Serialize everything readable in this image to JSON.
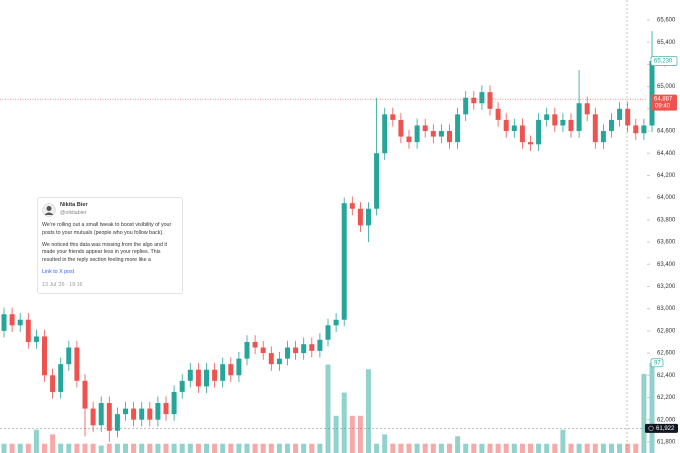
{
  "chart_data": {
    "type": "candlestick",
    "ylim": [
      61700,
      65780
    ],
    "yticks": [
      {
        "value": 65600,
        "label": "65,600"
      },
      {
        "value": 65400,
        "label": "65,400"
      },
      {
        "value": 65200,
        "label": "65,200"
      },
      {
        "value": 65000,
        "label": "65,000"
      },
      {
        "value": 64800,
        "label": "64,800"
      },
      {
        "value": 64600,
        "label": "64,600"
      },
      {
        "value": 64400,
        "label": "64,400"
      },
      {
        "value": 64200,
        "label": "64,200"
      },
      {
        "value": 64000,
        "label": "64,000"
      },
      {
        "value": 63800,
        "label": "63,800"
      },
      {
        "value": 63600,
        "label": "63,600"
      },
      {
        "value": 63400,
        "label": "63,400"
      },
      {
        "value": 63200,
        "label": "63,200"
      },
      {
        "value": 63000,
        "label": "63,000"
      },
      {
        "value": 62800,
        "label": "62,800"
      },
      {
        "value": 62600,
        "label": "62,600"
      },
      {
        "value": 62400,
        "label": "62,400"
      },
      {
        "value": 62200,
        "label": "62,200"
      },
      {
        "value": 62000,
        "label": "62,000"
      },
      {
        "value": 61800,
        "label": "61,800"
      }
    ],
    "grid": false,
    "up_color": "#26a69a",
    "down_color": "#ef5350",
    "open": [
      62800,
      62950,
      62850,
      62900,
      62700,
      62750,
      62400,
      62250,
      62500,
      62650,
      62350,
      62100,
      61950,
      62150,
      61900,
      62050,
      62100,
      62000,
      62100,
      62000,
      62150,
      62050,
      62250,
      62350,
      62450,
      62300,
      62450,
      62350,
      62500,
      62400,
      62550,
      62700,
      62650,
      62600,
      62500,
      62550,
      62650,
      62600,
      62680,
      62620,
      62720,
      62850,
      62900,
      63950,
      63900,
      63750,
      63900,
      64400,
      64750,
      64700,
      64550,
      64500,
      64650,
      64600,
      64550,
      64600,
      64500,
      64750,
      64900,
      64850,
      64950,
      64800,
      64700,
      64600,
      64650,
      64500,
      64480,
      64700,
      64750,
      64650,
      64700,
      64600,
      64850,
      64750,
      64500,
      64600,
      64700,
      64800,
      64650,
      64580,
      64650
    ],
    "high": [
      63010,
      63010,
      62960,
      62960,
      62810,
      62810,
      62460,
      62560,
      62710,
      62710,
      62410,
      62160,
      62210,
      62210,
      62110,
      62160,
      62160,
      62160,
      62160,
      62210,
      62210,
      62310,
      62410,
      62510,
      62510,
      62510,
      62510,
      62560,
      62560,
      62610,
      62760,
      62760,
      62710,
      62660,
      62610,
      62710,
      62710,
      62740,
      62740,
      62780,
      62910,
      62960,
      64000,
      64010,
      63960,
      63960,
      64900,
      64810,
      64810,
      64760,
      64610,
      64710,
      64710,
      64660,
      64660,
      64660,
      64810,
      64960,
      64960,
      65010,
      65010,
      64860,
      64760,
      64710,
      64710,
      64560,
      64760,
      64810,
      64810,
      64760,
      64760,
      65150,
      64910,
      64810,
      64660,
      64760,
      64860,
      64860,
      64710,
      64710,
      65500
    ],
    "low": [
      62740,
      62790,
      62790,
      62640,
      62640,
      62340,
      62190,
      62190,
      62440,
      62290,
      61850,
      61890,
      61890,
      61800,
      61840,
      61990,
      61940,
      61940,
      61940,
      61940,
      61990,
      61990,
      62190,
      62290,
      62240,
      62240,
      62290,
      62290,
      62340,
      62340,
      62490,
      62590,
      62540,
      62440,
      62440,
      62490,
      62540,
      62540,
      62560,
      62560,
      62660,
      62790,
      62840,
      63840,
      63690,
      63600,
      63840,
      64340,
      64640,
      64490,
      64440,
      64440,
      64540,
      64490,
      64490,
      64440,
      64440,
      64690,
      64790,
      64790,
      64740,
      64640,
      64540,
      64540,
      64440,
      64420,
      64420,
      64640,
      64590,
      64590,
      64540,
      64540,
      64690,
      64440,
      64440,
      64540,
      64640,
      64590,
      64520,
      64520,
      64590
    ],
    "close": [
      62950,
      62850,
      62900,
      62700,
      62750,
      62400,
      62250,
      62500,
      62650,
      62350,
      62100,
      61950,
      62150,
      61900,
      62050,
      62100,
      62000,
      62100,
      62000,
      62150,
      62050,
      62250,
      62350,
      62450,
      62300,
      62450,
      62350,
      62500,
      62400,
      62550,
      62700,
      62650,
      62600,
      62500,
      62550,
      62650,
      62600,
      62680,
      62620,
      62720,
      62850,
      62900,
      63950,
      63900,
      63750,
      63900,
      64400,
      64750,
      64700,
      64550,
      64500,
      64650,
      64600,
      64550,
      64600,
      64500,
      64750,
      64900,
      64850,
      64950,
      64800,
      64700,
      64600,
      64650,
      64500,
      64480,
      64700,
      64750,
      64650,
      64700,
      64600,
      64850,
      64750,
      64500,
      64600,
      64700,
      64800,
      64650,
      64580,
      64650,
      65230
    ],
    "volume": [
      10,
      10,
      10,
      10,
      25,
      10,
      20,
      10,
      10,
      10,
      10,
      10,
      8,
      10,
      10,
      10,
      10,
      10,
      10,
      10,
      10,
      10,
      10,
      10,
      10,
      10,
      10,
      10,
      10,
      10,
      10,
      10,
      10,
      10,
      10,
      10,
      10,
      10,
      10,
      10,
      95,
      40,
      65,
      40,
      40,
      90,
      10,
      20,
      10,
      10,
      10,
      10,
      10,
      10,
      10,
      10,
      18,
      10,
      10,
      10,
      10,
      10,
      10,
      10,
      10,
      10,
      10,
      10,
      10,
      25,
      10,
      10,
      10,
      10,
      10,
      10,
      10,
      10,
      10,
      85,
      97
    ],
    "volume_lim": [
      0,
      487
    ],
    "price_labels": [
      {
        "value": 65230,
        "label": "65,230"
      },
      {
        "value": 64887,
        "label": "64,887"
      }
    ],
    "countdown": "09:40",
    "crosshair": {
      "value": 61922,
      "label": "61,922"
    }
  },
  "tweet": {
    "name": "Nikita Bier",
    "handle": "@nikitabier",
    "paragraphs": [
      "We're rolling out a small tweak to boost visibility of your posts to your mutuals (people who you follow back).",
      "We noticed this data was missing from the algo and it made your friends appear less in your replies. This resulted in the reply section feeling more like a"
    ],
    "link": "Link to X post",
    "date": "13 Jul '26 · 19:16"
  }
}
